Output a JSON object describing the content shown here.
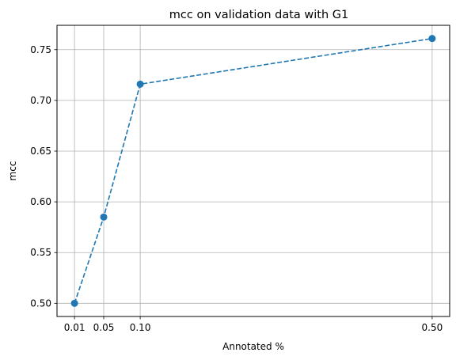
{
  "chart_data": {
    "type": "line",
    "title": "mcc on validation data with G1",
    "xlabel": "Annotated %",
    "ylabel": "mcc",
    "xlim": [
      -0.014,
      0.524
    ],
    "ylim": [
      0.487,
      0.774
    ],
    "grid": true,
    "x_ticks": [
      0.01,
      0.05,
      0.1,
      0.5
    ],
    "x_tick_labels": [
      "0.01",
      "0.05",
      "0.10",
      "0.50"
    ],
    "y_ticks": [
      0.5,
      0.55,
      0.6,
      0.65,
      0.7,
      0.75
    ],
    "y_tick_labels": [
      "0.50",
      "0.55",
      "0.60",
      "0.65",
      "0.70",
      "0.75"
    ],
    "series": [
      {
        "x": [
          0.01,
          0.05,
          0.1,
          0.5
        ],
        "y": [
          0.5,
          0.585,
          0.716,
          0.761
        ],
        "color": "#1f77b4",
        "line_style": "dashed",
        "marker": "circle"
      }
    ]
  }
}
